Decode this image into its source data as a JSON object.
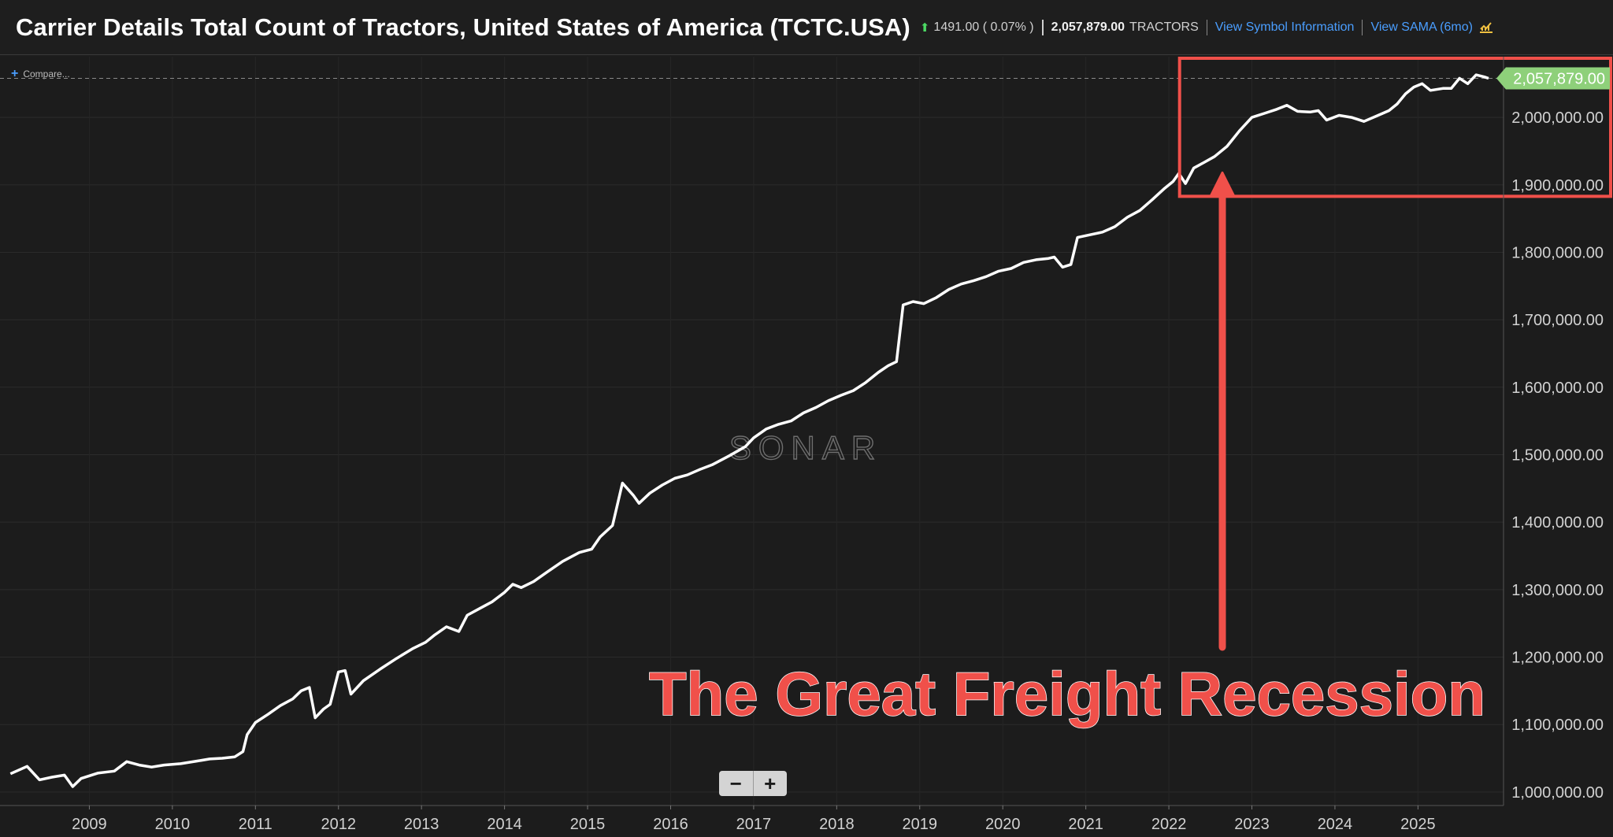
{
  "header": {
    "title": "Carrier Details Total Count of Tractors, United States of America (TCTC.USA)",
    "change": "1491.00 ( 0.07% )",
    "latest_value": "2,057,879.00",
    "unit": "TRACTORS",
    "link_symbol": "View Symbol Information",
    "link_sama": "View SAMA (6mo)"
  },
  "compare_label": "Compare...",
  "watermark": "SONAR",
  "annotation": "The Great Freight Recession",
  "colors": {
    "background": "#1c1c1c",
    "line": "#ffffff",
    "annotation": "#f0504a",
    "last_value_tag": "#8ed07a",
    "link": "#4a9eff",
    "up": "#4cd964"
  },
  "icons": [
    "plus-icon",
    "arrow-up-icon",
    "sama-chart-icon",
    "minus-icon"
  ],
  "zoom": {
    "minus": "−",
    "plus": "+"
  },
  "chart_data": {
    "type": "line",
    "ylim": [
      980000,
      2090000
    ],
    "xlim": [
      2008.0,
      2025.85
    ],
    "y_ticks": [
      1000000,
      1100000,
      1200000,
      1300000,
      1400000,
      1500000,
      1600000,
      1700000,
      1800000,
      1900000,
      2000000
    ],
    "y_tick_labels": [
      "1,000,000.00",
      "1,100,000.00",
      "1,200,000.00",
      "1,300,000.00",
      "1,400,000.00",
      "1,500,000.00",
      "1,600,000.00",
      "1,700,000.00",
      "1,800,000.00",
      "1,900,000.00",
      "2,000,000.00"
    ],
    "x_ticks": [
      2009,
      2010,
      2011,
      2012,
      2013,
      2014,
      2015,
      2016,
      2017,
      2018,
      2019,
      2020,
      2021,
      2022,
      2023,
      2024,
      2025
    ],
    "x_tick_labels": [
      "2009",
      "2010",
      "2011",
      "2012",
      "2013",
      "2014",
      "2015",
      "2016",
      "2017",
      "2018",
      "2019",
      "2020",
      "2021",
      "2022",
      "2023",
      "2024",
      "2025"
    ],
    "last_value": 2057879,
    "last_value_label": "2,057,879.00",
    "highlight_x_range": [
      2022.3,
      2025.85
    ],
    "highlight_y_range": [
      1890000,
      2090000
    ],
    "grid": true,
    "series": [
      {
        "values": [
          [
            2008.05,
            1027000
          ],
          [
            2008.25,
            1038000
          ],
          [
            2008.4,
            1018000
          ],
          [
            2008.55,
            1022000
          ],
          [
            2008.7,
            1025000
          ],
          [
            2008.8,
            1008000
          ],
          [
            2008.9,
            1020000
          ],
          [
            2009.1,
            1028000
          ],
          [
            2009.3,
            1031000
          ],
          [
            2009.45,
            1045000
          ],
          [
            2009.6,
            1040000
          ],
          [
            2009.75,
            1037000
          ],
          [
            2009.9,
            1040000
          ],
          [
            2010.1,
            1042000
          ],
          [
            2010.3,
            1046000
          ],
          [
            2010.45,
            1049000
          ],
          [
            2010.6,
            1050000
          ],
          [
            2010.75,
            1052000
          ],
          [
            2010.85,
            1060000
          ],
          [
            2010.9,
            1085000
          ],
          [
            2011.0,
            1103000
          ],
          [
            2011.15,
            1115000
          ],
          [
            2011.3,
            1128000
          ],
          [
            2011.45,
            1138000
          ],
          [
            2011.55,
            1150000
          ],
          [
            2011.65,
            1155000
          ],
          [
            2011.72,
            1110000
          ],
          [
            2011.82,
            1123000
          ],
          [
            2011.9,
            1130000
          ],
          [
            2012.0,
            1178000
          ],
          [
            2012.08,
            1180000
          ],
          [
            2012.15,
            1145000
          ],
          [
            2012.3,
            1165000
          ],
          [
            2012.5,
            1182000
          ],
          [
            2012.7,
            1198000
          ],
          [
            2012.9,
            1213000
          ],
          [
            2013.05,
            1222000
          ],
          [
            2013.15,
            1232000
          ],
          [
            2013.3,
            1245000
          ],
          [
            2013.45,
            1238000
          ],
          [
            2013.55,
            1262000
          ],
          [
            2013.7,
            1272000
          ],
          [
            2013.85,
            1282000
          ],
          [
            2014.0,
            1296000
          ],
          [
            2014.1,
            1308000
          ],
          [
            2014.2,
            1303000
          ],
          [
            2014.35,
            1312000
          ],
          [
            2014.5,
            1325000
          ],
          [
            2014.7,
            1342000
          ],
          [
            2014.9,
            1355000
          ],
          [
            2015.05,
            1360000
          ],
          [
            2015.15,
            1378000
          ],
          [
            2015.3,
            1395000
          ],
          [
            2015.42,
            1458000
          ],
          [
            2015.55,
            1440000
          ],
          [
            2015.62,
            1428000
          ],
          [
            2015.75,
            1443000
          ],
          [
            2015.9,
            1455000
          ],
          [
            2016.05,
            1465000
          ],
          [
            2016.2,
            1470000
          ],
          [
            2016.35,
            1478000
          ],
          [
            2016.5,
            1485000
          ],
          [
            2016.7,
            1498000
          ],
          [
            2016.9,
            1512000
          ],
          [
            2017.0,
            1525000
          ],
          [
            2017.15,
            1538000
          ],
          [
            2017.3,
            1545000
          ],
          [
            2017.45,
            1550000
          ],
          [
            2017.6,
            1562000
          ],
          [
            2017.75,
            1570000
          ],
          [
            2017.9,
            1580000
          ],
          [
            2018.05,
            1588000
          ],
          [
            2018.2,
            1595000
          ],
          [
            2018.35,
            1607000
          ],
          [
            2018.5,
            1622000
          ],
          [
            2018.62,
            1632000
          ],
          [
            2018.72,
            1638000
          ],
          [
            2018.8,
            1722000
          ],
          [
            2018.92,
            1727000
          ],
          [
            2019.05,
            1724000
          ],
          [
            2019.2,
            1733000
          ],
          [
            2019.35,
            1745000
          ],
          [
            2019.5,
            1753000
          ],
          [
            2019.65,
            1758000
          ],
          [
            2019.8,
            1764000
          ],
          [
            2019.95,
            1772000
          ],
          [
            2020.1,
            1776000
          ],
          [
            2020.25,
            1785000
          ],
          [
            2020.4,
            1789000
          ],
          [
            2020.55,
            1791000
          ],
          [
            2020.62,
            1793000
          ],
          [
            2020.72,
            1778000
          ],
          [
            2020.82,
            1782000
          ],
          [
            2020.9,
            1822000
          ],
          [
            2021.05,
            1826000
          ],
          [
            2021.2,
            1830000
          ],
          [
            2021.35,
            1838000
          ],
          [
            2021.5,
            1852000
          ],
          [
            2021.65,
            1862000
          ],
          [
            2021.8,
            1878000
          ],
          [
            2021.95,
            1895000
          ],
          [
            2022.05,
            1905000
          ],
          [
            2022.12,
            1917000
          ],
          [
            2022.2,
            1902000
          ],
          [
            2022.3,
            1925000
          ],
          [
            2022.42,
            1933000
          ],
          [
            2022.55,
            1942000
          ],
          [
            2022.7,
            1957000
          ],
          [
            2022.85,
            1980000
          ],
          [
            2023.0,
            2000000
          ],
          [
            2023.15,
            2006000
          ],
          [
            2023.3,
            2012000
          ],
          [
            2023.42,
            2018000
          ],
          [
            2023.55,
            2009000
          ],
          [
            2023.7,
            2008000
          ],
          [
            2023.8,
            2010000
          ],
          [
            2023.9,
            1996000
          ],
          [
            2024.05,
            2003000
          ],
          [
            2024.2,
            2000000
          ],
          [
            2024.35,
            1994000
          ],
          [
            2024.5,
            2002000
          ],
          [
            2024.65,
            2010000
          ],
          [
            2024.75,
            2020000
          ],
          [
            2024.85,
            2035000
          ],
          [
            2024.95,
            2045000
          ],
          [
            2025.05,
            2050000
          ],
          [
            2025.15,
            2040000
          ],
          [
            2025.3,
            2043000
          ],
          [
            2025.4,
            2043000
          ],
          [
            2025.5,
            2058000
          ],
          [
            2025.6,
            2050000
          ],
          [
            2025.7,
            2063000
          ],
          [
            2025.8,
            2060000
          ],
          [
            2025.85,
            2057879
          ]
        ]
      }
    ]
  }
}
